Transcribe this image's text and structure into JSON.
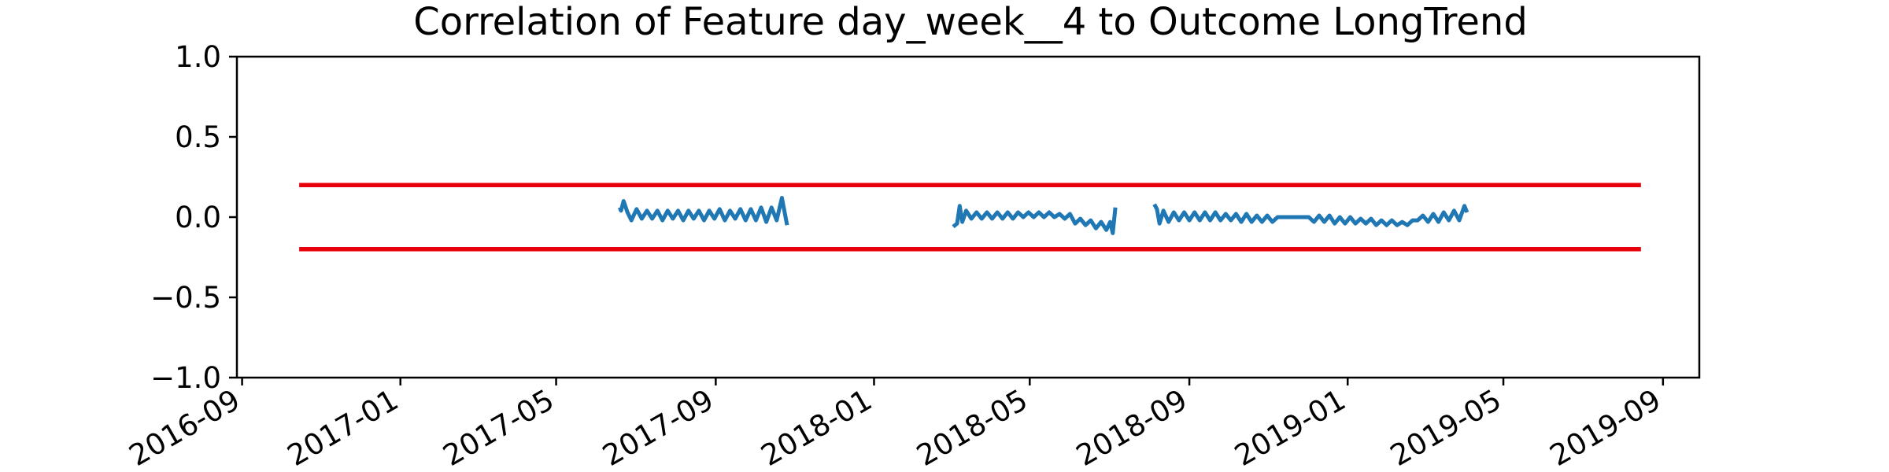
{
  "chart_data": {
    "type": "line",
    "title": "Correlation of Feature day_week__4 to Outcome LongTrend",
    "xlabel": "",
    "ylabel": "",
    "ylim": [
      -1.0,
      1.0
    ],
    "xlim": [
      "2016-08-28",
      "2019-09-29"
    ],
    "grid": false,
    "y_ticks": [
      1.0,
      0.5,
      0.0,
      -0.5,
      -1.0
    ],
    "y_tick_labels": [
      "1.0",
      "0.5",
      "0.0",
      "−0.5",
      "−1.0"
    ],
    "x_ticks": [
      "2016-09-01",
      "2017-01-01",
      "2017-05-01",
      "2017-09-01",
      "2018-01-01",
      "2018-05-01",
      "2018-09-01",
      "2019-01-01",
      "2019-05-01",
      "2019-09-01"
    ],
    "x_tick_labels": [
      "2016-09",
      "2017-01",
      "2017-05",
      "2017-09",
      "2018-01",
      "2018-05",
      "2018-09",
      "2019-01",
      "2019-05",
      "2019-09"
    ],
    "threshold_lines": [
      {
        "name": "upper-threshold",
        "y": 0.2,
        "x_start": "2016-10-15",
        "x_end": "2019-08-15",
        "color": "#e8000b"
      },
      {
        "name": "lower-threshold",
        "y": -0.2,
        "x_start": "2016-10-15",
        "x_end": "2019-08-15",
        "color": "#e8000b"
      }
    ],
    "series": [
      {
        "name": "correlation-segment-1",
        "color": "#1f77b4",
        "points": [
          [
            "2017-06-19",
            0.06
          ],
          [
            "2017-06-20",
            0.04
          ],
          [
            "2017-06-22",
            0.1
          ],
          [
            "2017-06-25",
            0.03
          ],
          [
            "2017-06-28",
            -0.02
          ],
          [
            "2017-07-02",
            0.05
          ],
          [
            "2017-07-06",
            -0.01
          ],
          [
            "2017-07-10",
            0.04
          ],
          [
            "2017-07-14",
            -0.01
          ],
          [
            "2017-07-18",
            0.04
          ],
          [
            "2017-07-22",
            -0.02
          ],
          [
            "2017-07-26",
            0.04
          ],
          [
            "2017-07-30",
            -0.01
          ],
          [
            "2017-08-03",
            0.04
          ],
          [
            "2017-08-07",
            -0.02
          ],
          [
            "2017-08-11",
            0.04
          ],
          [
            "2017-08-15",
            -0.01
          ],
          [
            "2017-08-19",
            0.04
          ],
          [
            "2017-08-23",
            -0.02
          ],
          [
            "2017-08-27",
            0.04
          ],
          [
            "2017-08-31",
            -0.01
          ],
          [
            "2017-09-04",
            0.05
          ],
          [
            "2017-09-08",
            -0.02
          ],
          [
            "2017-09-12",
            0.04
          ],
          [
            "2017-09-16",
            -0.01
          ],
          [
            "2017-09-20",
            0.05
          ],
          [
            "2017-09-24",
            -0.02
          ],
          [
            "2017-09-28",
            0.05
          ],
          [
            "2017-10-02",
            -0.02
          ],
          [
            "2017-10-06",
            0.06
          ],
          [
            "2017-10-10",
            -0.03
          ],
          [
            "2017-10-14",
            0.06
          ],
          [
            "2017-10-18",
            -0.02
          ],
          [
            "2017-10-22",
            0.12
          ],
          [
            "2017-10-26",
            -0.05
          ]
        ]
      },
      {
        "name": "correlation-segment-2",
        "color": "#1f77b4",
        "points": [
          [
            "2018-03-03",
            -0.06
          ],
          [
            "2018-03-06",
            -0.04
          ],
          [
            "2018-03-08",
            0.07
          ],
          [
            "2018-03-10",
            -0.03
          ],
          [
            "2018-03-13",
            0.04
          ],
          [
            "2018-03-17",
            -0.01
          ],
          [
            "2018-03-21",
            0.03
          ],
          [
            "2018-03-25",
            -0.01
          ],
          [
            "2018-03-29",
            0.03
          ],
          [
            "2018-04-02",
            -0.01
          ],
          [
            "2018-04-06",
            0.03
          ],
          [
            "2018-04-10",
            -0.01
          ],
          [
            "2018-04-14",
            0.03
          ],
          [
            "2018-04-18",
            -0.01
          ],
          [
            "2018-04-22",
            0.03
          ],
          [
            "2018-04-26",
            0.0
          ],
          [
            "2018-04-30",
            0.03
          ],
          [
            "2018-05-04",
            0.0
          ],
          [
            "2018-05-08",
            0.03
          ],
          [
            "2018-05-12",
            0.0
          ],
          [
            "2018-05-16",
            0.03
          ],
          [
            "2018-05-20",
            0.0
          ],
          [
            "2018-05-24",
            0.02
          ],
          [
            "2018-05-28",
            -0.01
          ],
          [
            "2018-06-01",
            0.02
          ],
          [
            "2018-06-05",
            -0.04
          ],
          [
            "2018-06-09",
            -0.01
          ],
          [
            "2018-06-13",
            -0.05
          ],
          [
            "2018-06-17",
            -0.02
          ],
          [
            "2018-06-21",
            -0.07
          ],
          [
            "2018-06-25",
            -0.03
          ],
          [
            "2018-06-29",
            -0.08
          ],
          [
            "2018-07-02",
            -0.03
          ],
          [
            "2018-07-04",
            -0.1
          ],
          [
            "2018-07-06",
            0.06
          ]
        ]
      },
      {
        "name": "correlation-segment-3",
        "color": "#1f77b4",
        "points": [
          [
            "2018-08-05",
            0.08
          ],
          [
            "2018-08-07",
            0.05
          ],
          [
            "2018-08-09",
            -0.04
          ],
          [
            "2018-08-12",
            0.04
          ],
          [
            "2018-08-16",
            -0.03
          ],
          [
            "2018-08-20",
            0.03
          ],
          [
            "2018-08-24",
            -0.02
          ],
          [
            "2018-08-28",
            0.03
          ],
          [
            "2018-09-01",
            -0.02
          ],
          [
            "2018-09-05",
            0.03
          ],
          [
            "2018-09-09",
            -0.02
          ],
          [
            "2018-09-13",
            0.03
          ],
          [
            "2018-09-17",
            -0.02
          ],
          [
            "2018-09-21",
            0.03
          ],
          [
            "2018-09-25",
            -0.02
          ],
          [
            "2018-09-29",
            0.02
          ],
          [
            "2018-10-03",
            -0.02
          ],
          [
            "2018-10-07",
            0.02
          ],
          [
            "2018-10-11",
            -0.03
          ],
          [
            "2018-10-15",
            0.02
          ],
          [
            "2018-10-19",
            -0.03
          ],
          [
            "2018-10-23",
            0.01
          ],
          [
            "2018-10-27",
            -0.03
          ],
          [
            "2018-10-31",
            0.01
          ],
          [
            "2018-11-04",
            -0.03
          ],
          [
            "2018-11-08",
            0.0
          ],
          [
            "2018-11-16",
            0.0
          ],
          [
            "2018-11-24",
            0.0
          ],
          [
            "2018-12-02",
            0.0
          ],
          [
            "2018-12-06",
            -0.03
          ],
          [
            "2018-12-10",
            0.01
          ],
          [
            "2018-12-14",
            -0.03
          ],
          [
            "2018-12-18",
            0.01
          ],
          [
            "2018-12-22",
            -0.04
          ],
          [
            "2018-12-26",
            0.0
          ],
          [
            "2018-12-30",
            -0.04
          ],
          [
            "2019-01-03",
            0.0
          ],
          [
            "2019-01-07",
            -0.04
          ],
          [
            "2019-01-11",
            -0.01
          ],
          [
            "2019-01-15",
            -0.04
          ],
          [
            "2019-01-19",
            -0.01
          ],
          [
            "2019-01-23",
            -0.05
          ],
          [
            "2019-01-27",
            -0.02
          ],
          [
            "2019-01-31",
            -0.05
          ],
          [
            "2019-02-04",
            -0.02
          ],
          [
            "2019-02-08",
            -0.05
          ],
          [
            "2019-02-12",
            -0.03
          ],
          [
            "2019-02-16",
            -0.05
          ],
          [
            "2019-02-20",
            -0.02
          ],
          [
            "2019-02-24",
            -0.02
          ],
          [
            "2019-02-28",
            0.01
          ],
          [
            "2019-03-04",
            -0.03
          ],
          [
            "2019-03-08",
            0.02
          ],
          [
            "2019-03-12",
            -0.03
          ],
          [
            "2019-03-16",
            0.03
          ],
          [
            "2019-03-20",
            -0.02
          ],
          [
            "2019-03-24",
            0.04
          ],
          [
            "2019-03-28",
            -0.02
          ],
          [
            "2019-04-01",
            0.07
          ],
          [
            "2019-04-03",
            0.03
          ]
        ]
      }
    ]
  }
}
